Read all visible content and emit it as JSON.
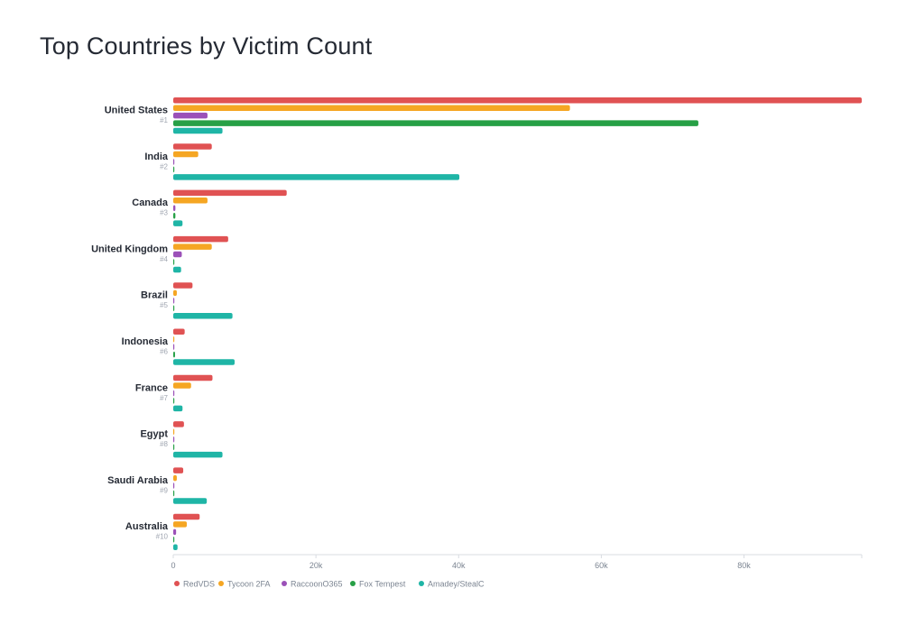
{
  "chart_data": {
    "type": "bar",
    "orientation": "horizontal",
    "title": "Top Countries by Victim Count",
    "categories": [
      "United States",
      "India",
      "Canada",
      "United Kingdom",
      "Brazil",
      "Indonesia",
      "France",
      "Egypt",
      "Saudi Arabia",
      "Australia"
    ],
    "ranks": [
      "#1",
      "#2",
      "#3",
      "#4",
      "#5",
      "#6",
      "#7",
      "#8",
      "#9",
      "#10"
    ],
    "series": [
      {
        "name": "RedVDS",
        "color": "#e05253",
        "values": [
          96500,
          5400,
          15900,
          7700,
          2700,
          1600,
          5500,
          1500,
          1400,
          3700
        ]
      },
      {
        "name": "Tycoon 2FA",
        "color": "#f5a623",
        "values": [
          55600,
          3500,
          4800,
          5400,
          500,
          150,
          2500,
          150,
          500,
          1900
        ]
      },
      {
        "name": "RaccoonO365",
        "color": "#9b51b8",
        "values": [
          4800,
          100,
          300,
          1200,
          50,
          50,
          100,
          50,
          50,
          400
        ]
      },
      {
        "name": "Fox Tempest",
        "color": "#27a046",
        "values": [
          73600,
          150,
          300,
          150,
          100,
          250,
          150,
          50,
          100,
          100
        ]
      },
      {
        "name": "Amadey/StealC",
        "color": "#1fb5a6",
        "values": [
          6900,
          40100,
          1300,
          1100,
          8300,
          8600,
          1300,
          6900,
          4700,
          600
        ]
      }
    ],
    "xlim": [
      0,
      96500
    ],
    "xticks": [
      0,
      20000,
      40000,
      60000,
      80000
    ],
    "xtick_labels": [
      "0",
      "20k",
      "40k",
      "60k",
      "80k"
    ],
    "grid": false,
    "legend_position": "bottom-left"
  }
}
